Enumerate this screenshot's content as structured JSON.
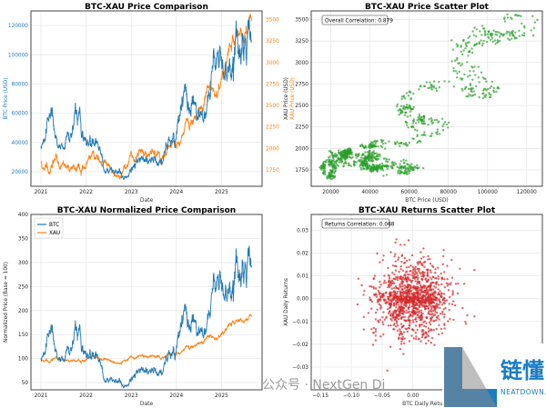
{
  "chart_data": [
    {
      "type": "line",
      "title": "BTC-XAU Price Comparison",
      "xlabel": "Date",
      "ylabel": "BTC Price (USD)",
      "ylabel_right": "XAU Price (USD)",
      "x_ticks": [
        "2021",
        "2022",
        "2023",
        "2024",
        "2025"
      ],
      "y_ticks": [
        20000,
        40000,
        60000,
        80000,
        100000,
        120000
      ],
      "y_ticks_right": [
        1750,
        2000,
        2250,
        2500,
        2750,
        3000,
        3250,
        3500
      ],
      "ylim": [
        10000,
        130000
      ],
      "ylim_right": [
        1560,
        3600
      ],
      "grid": true,
      "series": [
        {
          "name": "BTC",
          "axis": "left",
          "color": "#1f77b4"
        },
        {
          "name": "XAU",
          "axis": "right",
          "color": "#ff7f0e"
        }
      ]
    },
    {
      "type": "scatter",
      "title": "BTC-XAU Price Scatter Plot",
      "xlabel": "BTC Price (USD)",
      "ylabel": "XAU Price (USD)",
      "x_ticks": [
        20000,
        40000,
        60000,
        80000,
        100000,
        120000
      ],
      "y_ticks": [
        1750,
        2000,
        2250,
        2500,
        2750,
        3000,
        3250,
        3500
      ],
      "xlim": [
        10000,
        128000
      ],
      "ylim": [
        1560,
        3600
      ],
      "annotation": "Overall Correlation: 0.879",
      "color": "#2ca02c",
      "grid": true
    },
    {
      "type": "line",
      "title": "BTC-XAU Normalized Price Comparison",
      "xlabel": "Date",
      "ylabel": "Normalized Price (Base = 100)",
      "x_ticks": [
        "2021",
        "2022",
        "2023",
        "2024",
        "2025"
      ],
      "y_ticks": [
        50,
        100,
        150,
        200,
        250,
        300,
        350,
        400
      ],
      "ylim": [
        35,
        400
      ],
      "legend": [
        "BTC",
        "XAU"
      ],
      "legend_position": "top-left",
      "grid": true
    },
    {
      "type": "scatter",
      "title": "BTC-XAU Returns Scatter Plot",
      "xlabel": "BTC Daily Returns",
      "ylabel": "XAU Daily Returns",
      "x_ticks": [
        -0.15,
        -0.1,
        -0.05,
        0.0
      ],
      "x_tick_labels": [
        "−0.15",
        "−0.10",
        "−0.05",
        "0.00"
      ],
      "y_ticks": [
        -0.03,
        -0.02,
        -0.01,
        0.0,
        0.01,
        0.02,
        0.03
      ],
      "y_tick_labels": [
        "−0.03",
        "−0.02",
        "−0.01",
        "0.00",
        "0.01",
        "0.02",
        "0.03"
      ],
      "xlim": [
        -0.165,
        0.21
      ],
      "ylim": [
        -0.04,
        0.037
      ],
      "annotation": "Returns Correlation: 0.068",
      "color": "#d62728",
      "grid": true
    }
  ],
  "monthly": {
    "start_year": 2021,
    "btc": [
      33000,
      45000,
      57000,
      58000,
      40000,
      34000,
      35000,
      47000,
      45000,
      60000,
      62000,
      48000,
      40000,
      40000,
      45000,
      40000,
      30000,
      20000,
      22000,
      21000,
      19500,
      20000,
      16500,
      16800,
      22000,
      23500,
      27000,
      29000,
      27000,
      29500,
      29500,
      26500,
      26500,
      34000,
      37500,
      42000,
      42000,
      60000,
      70000,
      64000,
      67000,
      62000,
      64000,
      59000,
      63000,
      70000,
      95000,
      96000,
      102000,
      85000,
      83000,
      94000,
      105000,
      107000,
      117000,
      113000,
      110000
    ],
    "xau": [
      1850,
      1780,
      1720,
      1780,
      1900,
      1780,
      1810,
      1790,
      1760,
      1780,
      1790,
      1800,
      1820,
      1900,
      1930,
      1900,
      1840,
      1830,
      1760,
      1750,
      1670,
      1660,
      1760,
      1810,
      1920,
      1830,
      1980,
      1990,
      1960,
      1920,
      1960,
      1920,
      1870,
      1990,
      2040,
      2060,
      2040,
      2030,
      2230,
      2330,
      2340,
      2330,
      2420,
      2500,
      2650,
      2740,
      2650,
      2620,
      2800,
      2900,
      3100,
      3300,
      3300,
      3350,
      3330,
      3400,
      3500
    ]
  },
  "watermark": {
    "text": "公众号 · NextGen Di",
    "logo_main": "链懂",
    "logo_sub": "NEATDOWN.COM"
  }
}
